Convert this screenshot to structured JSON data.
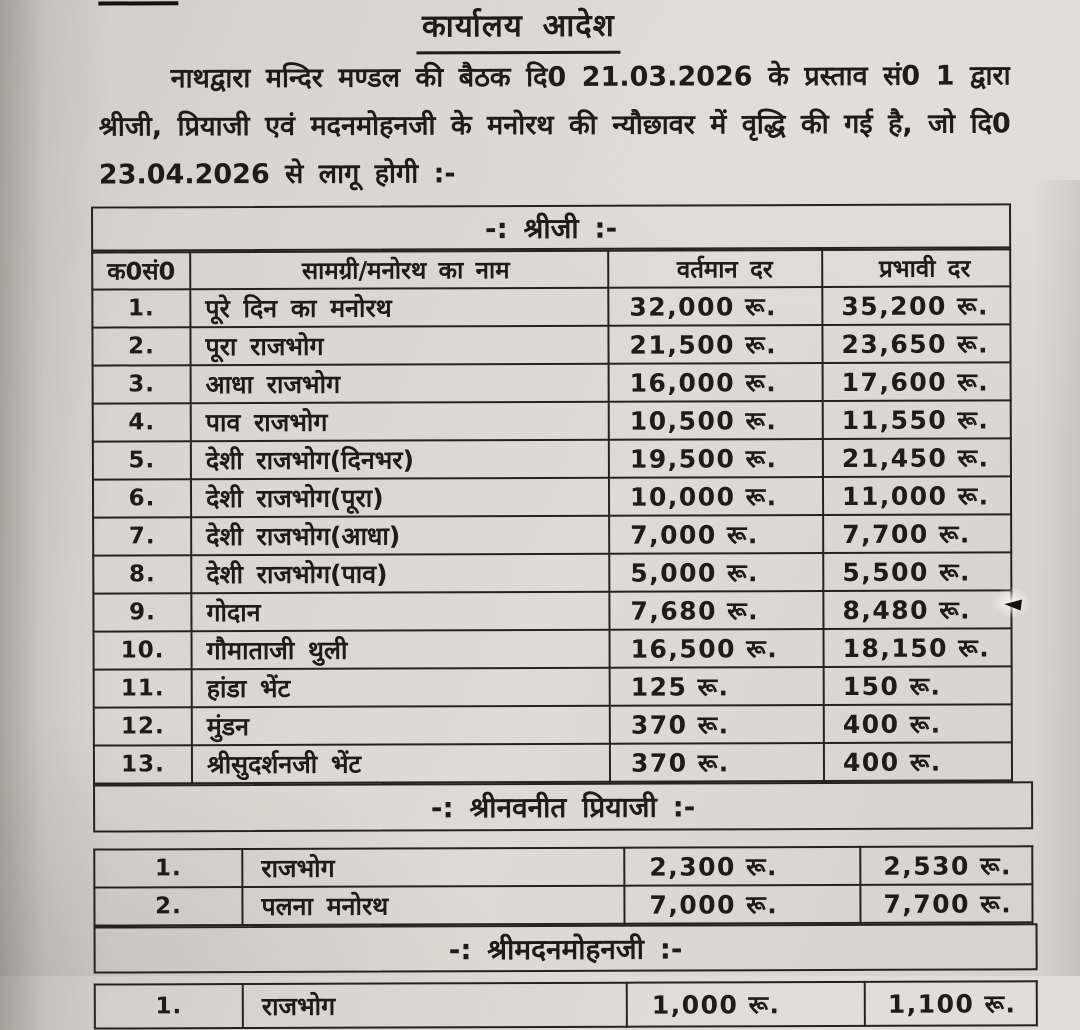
{
  "document": {
    "title": "कार्यालय आदेश",
    "intro_lines": [
      "नाथद्वारा मन्दिर मण्डल की बैठक दि0 21.03.2026 के प्रस्ताव सं0 1 द्वारा",
      "श्रीजी, प्रियाजी एवं मदनमोहनजी के मनोरथ की न्यौछावर में वृद्धि की गई है, जो दि0",
      "23.04.2026 से लागू होगी :-"
    ],
    "currency_suffix": "रू.",
    "table": {
      "columns": [
        "क0सं0",
        "सामग्री/मनोरथ का नाम",
        "वर्तमान दर",
        "प्रभावी दर"
      ],
      "sections": [
        {
          "heading": "-: श्रीजी :-",
          "has_column_header": true,
          "rows": [
            [
              "1.",
              "पूरे दिन का मनोरथ",
              "32,000 रू.",
              "35,200 रू."
            ],
            [
              "2.",
              "पूरा राजभोग",
              "21,500 रू.",
              "23,650 रू."
            ],
            [
              "3.",
              "आधा राजभोग",
              "16,000 रू.",
              "17,600 रू."
            ],
            [
              "4.",
              "पाव राजभोग",
              "10,500 रू.",
              "11,550 रू."
            ],
            [
              "5.",
              "देशी राजभोग(दिनभर)",
              "19,500 रू.",
              "21,450 रू."
            ],
            [
              "6.",
              "देशी राजभोग(पूरा)",
              "10,000 रू.",
              "11,000 रू."
            ],
            [
              "7.",
              "देशी राजभोग(आधा)",
              "7,000 रू.",
              "7,700 रू."
            ],
            [
              "8.",
              "देशी राजभोग(पाव)",
              "5,000 रू.",
              "5,500 रू."
            ],
            [
              "9.",
              "गोदान",
              "7,680 रू.",
              "8,480 रू."
            ],
            [
              "10.",
              "गौमाताजी थुली",
              "16,500 रू.",
              "18,150 रू."
            ],
            [
              "11.",
              "हांडा भेंट",
              "125 रू.",
              "150 रू."
            ],
            [
              "12.",
              "मुंडन",
              "370 रू.",
              "400 रू."
            ],
            [
              "13.",
              "श्रीसुदर्शनजी भेंट",
              "370 रू.",
              "400 रू."
            ]
          ]
        },
        {
          "heading": "-: श्रीनवनीत प्रियाजी :-",
          "has_column_header": false,
          "rows": [
            [
              "1.",
              "राजभोग",
              "2,300 रू.",
              "2,530 रू."
            ],
            [
              "2.",
              "पलना मनोरथ",
              "7,000 रू.",
              "7,700 रू."
            ]
          ]
        },
        {
          "heading": "-: श्रीमदनमोहनजी :-",
          "has_column_header": false,
          "rows": [
            [
              "1.",
              "राजभोग",
              "1,000 रू.",
              "1,100 रू."
            ]
          ]
        }
      ]
    },
    "colors": {
      "paper": "#dbd8d1",
      "ink": "#1e1c19",
      "table_border": "#26231f"
    }
  }
}
